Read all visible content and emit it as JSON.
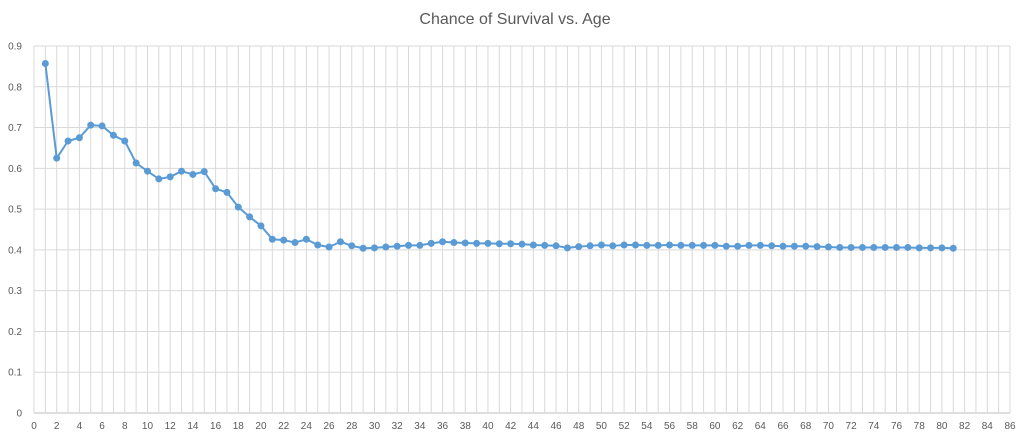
{
  "chart_data": {
    "type": "line",
    "title": "Chance of Survival vs. Age",
    "xlabel": "",
    "ylabel": "",
    "xlim": [
      0,
      86
    ],
    "ylim": [
      0,
      0.9
    ],
    "x_ticks": [
      0,
      2,
      4,
      6,
      8,
      10,
      12,
      14,
      16,
      18,
      20,
      22,
      24,
      26,
      28,
      30,
      32,
      34,
      36,
      38,
      40,
      42,
      44,
      46,
      48,
      50,
      52,
      54,
      56,
      58,
      60,
      62,
      64,
      66,
      68,
      70,
      72,
      74,
      76,
      78,
      80,
      82,
      84,
      86
    ],
    "y_ticks": [
      0,
      0.1,
      0.2,
      0.3,
      0.4,
      0.5,
      0.6,
      0.7,
      0.8,
      0.9
    ],
    "grid": true,
    "color": "#5b9bd5",
    "series": [
      {
        "x": [
          1,
          2,
          3,
          4,
          5,
          6,
          7,
          8,
          9,
          10,
          11,
          12,
          13,
          14,
          15,
          16,
          17,
          18,
          19,
          20,
          21,
          22,
          23,
          24,
          25,
          26,
          27,
          28,
          29,
          30,
          31,
          32,
          33,
          34,
          35,
          36,
          37,
          38,
          39,
          40,
          41,
          42,
          43,
          44,
          45,
          46,
          47,
          48,
          49,
          50,
          51,
          52,
          53,
          54,
          55,
          56,
          57,
          58,
          59,
          60,
          61,
          62,
          63,
          64,
          65,
          66,
          67,
          68,
          69,
          70,
          71,
          72,
          73,
          74,
          75,
          76,
          77,
          78,
          79,
          80,
          81
        ],
        "values": [
          0.857,
          0.625,
          0.667,
          0.675,
          0.706,
          0.704,
          0.681,
          0.667,
          0.613,
          0.593,
          0.574,
          0.579,
          0.593,
          0.585,
          0.592,
          0.55,
          0.541,
          0.505,
          0.481,
          0.459,
          0.426,
          0.424,
          0.418,
          0.426,
          0.412,
          0.407,
          0.42,
          0.41,
          0.404,
          0.405,
          0.407,
          0.409,
          0.411,
          0.411,
          0.416,
          0.42,
          0.418,
          0.417,
          0.416,
          0.416,
          0.415,
          0.415,
          0.414,
          0.412,
          0.411,
          0.41,
          0.405,
          0.408,
          0.41,
          0.412,
          0.41,
          0.412,
          0.412,
          0.411,
          0.411,
          0.412,
          0.411,
          0.411,
          0.411,
          0.411,
          0.409,
          0.409,
          0.411,
          0.411,
          0.41,
          0.409,
          0.409,
          0.409,
          0.408,
          0.407,
          0.406,
          0.406,
          0.406,
          0.406,
          0.406,
          0.406,
          0.406,
          0.405,
          0.405,
          0.405,
          0.404
        ]
      }
    ]
  }
}
